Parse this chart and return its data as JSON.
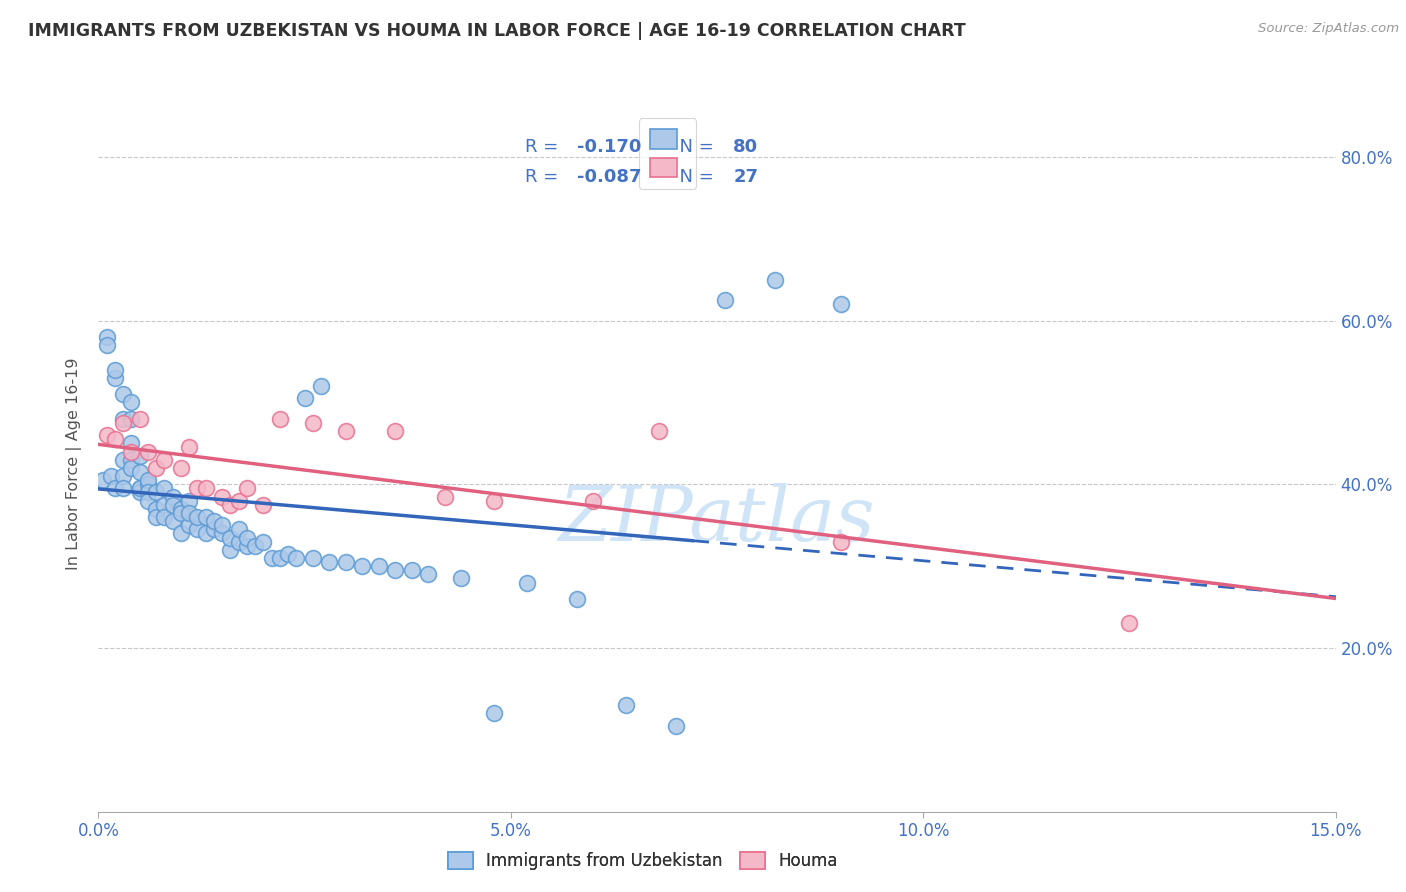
{
  "title": "IMMIGRANTS FROM UZBEKISTAN VS HOUMA IN LABOR FORCE | AGE 16-19 CORRELATION CHART",
  "source": "Source: ZipAtlas.com",
  "ylabel": "In Labor Force | Age 16-19",
  "xlim": [
    0.0,
    0.15
  ],
  "ylim": [
    0.0,
    0.85
  ],
  "yticks": [
    0.2,
    0.4,
    0.6,
    0.8
  ],
  "ytick_labels": [
    "20.0%",
    "40.0%",
    "60.0%",
    "80.0%"
  ],
  "xticks": [
    0.0,
    0.05,
    0.1,
    0.15
  ],
  "xtick_labels": [
    "0.0%",
    "5.0%",
    "10.0%",
    "15.0%"
  ],
  "series1_label": "Immigrants from Uzbekistan",
  "series1_R": "-0.170",
  "series1_N": "80",
  "series1_color": "#adc8e8",
  "series1_edge": "#5b9bd5",
  "series2_label": "Houma",
  "series2_R": "-0.087",
  "series2_N": "27",
  "series2_color": "#f4b8c8",
  "series2_edge": "#e87090",
  "regression1_color": "#3366bb",
  "regression2_color": "#e06080",
  "regression1_solid_end": 0.072,
  "watermark": "ZIPatlas",
  "watermark_color": "#d0e4f7",
  "title_color": "#333333",
  "axis_label_color": "#555555",
  "tick_color": "#4472c4",
  "grid_color": "#c8c8c8",
  "legend_text_color": "#4472c4",
  "series1_x": [
    0.0005,
    0.001,
    0.001,
    0.0015,
    0.002,
    0.002,
    0.002,
    0.003,
    0.003,
    0.003,
    0.003,
    0.003,
    0.004,
    0.004,
    0.004,
    0.004,
    0.004,
    0.005,
    0.005,
    0.005,
    0.005,
    0.005,
    0.006,
    0.006,
    0.006,
    0.006,
    0.007,
    0.007,
    0.007,
    0.008,
    0.008,
    0.008,
    0.009,
    0.009,
    0.009,
    0.01,
    0.01,
    0.01,
    0.011,
    0.011,
    0.011,
    0.012,
    0.012,
    0.013,
    0.013,
    0.014,
    0.014,
    0.015,
    0.015,
    0.016,
    0.016,
    0.017,
    0.017,
    0.018,
    0.018,
    0.019,
    0.02,
    0.021,
    0.022,
    0.023,
    0.024,
    0.025,
    0.026,
    0.027,
    0.028,
    0.03,
    0.032,
    0.034,
    0.036,
    0.038,
    0.04,
    0.044,
    0.048,
    0.052,
    0.058,
    0.064,
    0.07,
    0.076,
    0.082,
    0.09
  ],
  "series1_y": [
    0.405,
    0.58,
    0.57,
    0.41,
    0.53,
    0.54,
    0.395,
    0.48,
    0.51,
    0.43,
    0.41,
    0.395,
    0.43,
    0.45,
    0.48,
    0.5,
    0.42,
    0.395,
    0.39,
    0.395,
    0.435,
    0.415,
    0.4,
    0.405,
    0.39,
    0.38,
    0.37,
    0.36,
    0.39,
    0.395,
    0.375,
    0.36,
    0.385,
    0.355,
    0.375,
    0.34,
    0.37,
    0.365,
    0.38,
    0.35,
    0.365,
    0.345,
    0.36,
    0.34,
    0.36,
    0.345,
    0.355,
    0.34,
    0.35,
    0.32,
    0.335,
    0.33,
    0.345,
    0.325,
    0.335,
    0.325,
    0.33,
    0.31,
    0.31,
    0.315,
    0.31,
    0.505,
    0.31,
    0.52,
    0.305,
    0.305,
    0.3,
    0.3,
    0.295,
    0.295,
    0.29,
    0.285,
    0.12,
    0.28,
    0.26,
    0.13,
    0.105,
    0.625,
    0.65,
    0.62
  ],
  "series2_x": [
    0.001,
    0.002,
    0.003,
    0.004,
    0.005,
    0.006,
    0.007,
    0.008,
    0.01,
    0.011,
    0.012,
    0.013,
    0.015,
    0.016,
    0.017,
    0.018,
    0.02,
    0.022,
    0.026,
    0.03,
    0.036,
    0.042,
    0.048,
    0.06,
    0.068,
    0.09,
    0.125
  ],
  "series2_y": [
    0.46,
    0.455,
    0.475,
    0.44,
    0.48,
    0.44,
    0.42,
    0.43,
    0.42,
    0.445,
    0.395,
    0.395,
    0.385,
    0.375,
    0.38,
    0.395,
    0.375,
    0.48,
    0.475,
    0.465,
    0.465,
    0.385,
    0.38,
    0.38,
    0.465,
    0.33,
    0.23
  ]
}
